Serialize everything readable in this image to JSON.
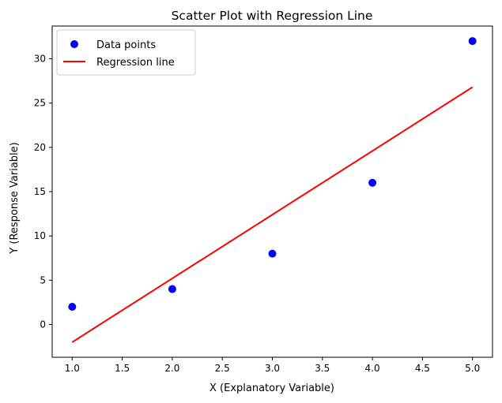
{
  "chart_data": {
    "type": "scatter",
    "title": "Scatter Plot with Regression Line",
    "xlabel": "X (Explanatory Variable)",
    "ylabel": "Y (Response Variable)",
    "xlim": [
      0.8,
      5.2
    ],
    "ylim": [
      -3.7,
      33.7
    ],
    "xticks": [
      "1.0",
      "1.5",
      "2.0",
      "2.5",
      "3.0",
      "3.5",
      "4.0",
      "4.5",
      "5.0"
    ],
    "xtick_values": [
      1.0,
      1.5,
      2.0,
      2.5,
      3.0,
      3.5,
      4.0,
      4.5,
      5.0
    ],
    "yticks": [
      "0",
      "5",
      "10",
      "15",
      "20",
      "25",
      "30"
    ],
    "ytick_values": [
      0,
      5,
      10,
      15,
      20,
      25,
      30
    ],
    "grid": false,
    "legend_position": "top-left",
    "series": [
      {
        "name": "Data points",
        "kind": "scatter",
        "color": "#0000ff",
        "x": [
          1,
          2,
          3,
          4,
          5
        ],
        "y": [
          2,
          4,
          8,
          16,
          32
        ]
      },
      {
        "name": "Regression line",
        "kind": "line",
        "color": "#ff0000",
        "x": [
          1,
          5
        ],
        "y": [
          -2.0,
          26.8
        ]
      }
    ]
  }
}
